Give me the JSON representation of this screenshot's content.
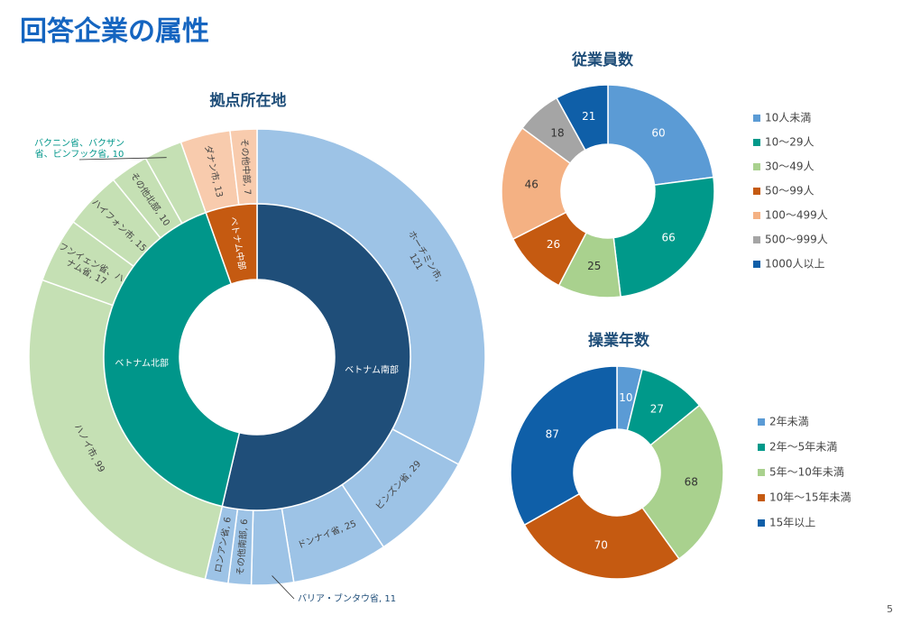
{
  "title": "回答企業の属性",
  "page_number": "5",
  "chart_data": [
    {
      "type": "sunburst",
      "title": "拠点所在地",
      "groups": [
        {
          "name": "ベトナム南部",
          "color": "#1f4e79",
          "child_color": "#9dc3e6",
          "children": [
            {
              "lines": [
                "ホーチミン市,",
                "121"
              ],
              "value": 121
            },
            {
              "lines": [
                "ビンズン省, 29"
              ],
              "value": 29
            },
            {
              "lines": [
                "ドンナイ省, 25"
              ],
              "value": 25
            },
            {
              "lines": [
                "バリア・ブンタウ省, 11"
              ],
              "value": 11
            },
            {
              "lines": [
                "その他南部, 6"
              ],
              "value": 6
            },
            {
              "lines": [
                "ロンアン省, 6"
              ],
              "value": 6
            }
          ]
        },
        {
          "name": "ベトナム北部",
          "color": "#00968a",
          "child_color": "#c5e0b4",
          "children": [
            {
              "lines": [
                "ハノイ市, 99"
              ],
              "value": 99
            },
            {
              "lines": [
                "フンイェン省、ハ",
                "ナム省, 17"
              ],
              "value": 17
            },
            {
              "lines": [
                "ハイフォン市, 15"
              ],
              "value": 15
            },
            {
              "lines": [
                "その他北部, 10"
              ],
              "value": 10
            },
            {
              "lines": [
                "バクニン省、バクザン",
                "省、ビンフック省, 10"
              ],
              "value": 10
            }
          ]
        },
        {
          "name": "ベトナム中部",
          "color": "#c55a11",
          "child_color": "#f8cbad",
          "children": [
            {
              "lines": [
                "ダナン市, 13"
              ],
              "value": 13
            },
            {
              "lines": [
                "その他中部, 7"
              ],
              "value": 7
            }
          ]
        }
      ]
    },
    {
      "type": "donut",
      "title": "従業員数",
      "categories": [
        "10人未満",
        "10〜29人",
        "30〜49人",
        "50〜99人",
        "100〜499人",
        "500〜999人",
        "1000人以上"
      ],
      "values": [
        60,
        66,
        25,
        26,
        46,
        18,
        21
      ],
      "colors": [
        "#5b9bd5",
        "#00998a",
        "#a9d18e",
        "#c55a11",
        "#f4b183",
        "#a5a5a5",
        "#0f5fa8"
      ]
    },
    {
      "type": "donut",
      "title": "操業年数",
      "categories": [
        "2年未満",
        "2年〜5年未満",
        "5年〜10年未満",
        "10年〜15年未満",
        "15年以上"
      ],
      "values": [
        10,
        27,
        68,
        70,
        87
      ],
      "colors": [
        "#5b9bd5",
        "#00998a",
        "#a9d18e",
        "#c55a11",
        "#0f5fa8"
      ]
    }
  ]
}
